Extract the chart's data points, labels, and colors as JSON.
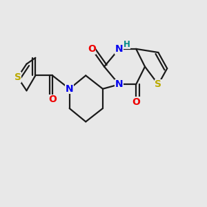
{
  "bg_color": "#e8e8e8",
  "bond_color": "#1a1a1a",
  "bond_width": 1.6,
  "atom_colors": {
    "N": "#0000ee",
    "O": "#ee0000",
    "S": "#bbaa00",
    "H": "#008888",
    "C": "#1a1a1a"
  },
  "font_size_atom": 10,
  "font_size_H": 8.5
}
